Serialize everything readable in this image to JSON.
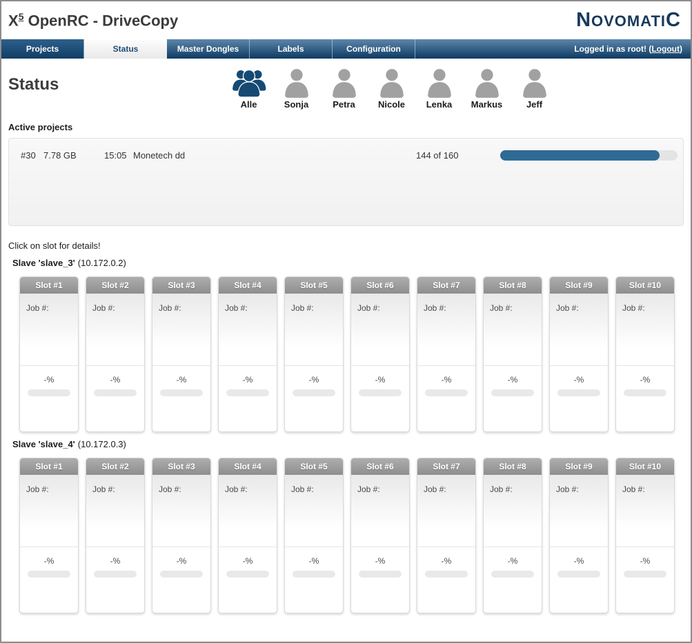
{
  "header": {
    "title_main": "X",
    "title_sup": "5",
    "title_rest": " OpenRC - DriveCopy",
    "logo_first": "N",
    "logo_mid": "OVOMATI",
    "logo_last": "C"
  },
  "nav": {
    "tabs": [
      {
        "label": "Projects",
        "style": "dark"
      },
      {
        "label": "Status",
        "style": "active"
      },
      {
        "label": "Master Dongles",
        "style": "blue"
      },
      {
        "label": "Labels",
        "style": "blue"
      },
      {
        "label": "Configuration",
        "style": "blue"
      }
    ],
    "logged_in_text": "Logged in as root!",
    "paren_open": "(",
    "logout_label": "Logout",
    "paren_close": ")"
  },
  "page": {
    "heading": "Status"
  },
  "users": [
    {
      "name": "Alle",
      "icon": "users-group"
    },
    {
      "name": "Sonja",
      "icon": "user"
    },
    {
      "name": "Petra",
      "icon": "user"
    },
    {
      "name": "Nicole",
      "icon": "user"
    },
    {
      "name": "Lenka",
      "icon": "user"
    },
    {
      "name": "Markus",
      "icon": "user"
    },
    {
      "name": "Jeff",
      "icon": "user"
    }
  ],
  "active_projects": {
    "title": "Active projects",
    "rows": [
      {
        "id": "#30",
        "size": "7.78 GB",
        "time": "15:05",
        "name": "Monetech dd",
        "progress_text": "144 of 160",
        "progress_percent": 90
      }
    ]
  },
  "hint": "Click on slot for details!",
  "slaves": [
    {
      "name": "Slave 'slave_3'",
      "ip": "(10.172.0.2)",
      "slots": [
        {
          "label": "Slot #1",
          "job": "Job #:",
          "percent": "-%"
        },
        {
          "label": "Slot #2",
          "job": "Job #:",
          "percent": "-%"
        },
        {
          "label": "Slot #3",
          "job": "Job #:",
          "percent": "-%"
        },
        {
          "label": "Slot #4",
          "job": "Job #:",
          "percent": "-%"
        },
        {
          "label": "Slot #5",
          "job": "Job #:",
          "percent": "-%"
        },
        {
          "label": "Slot #6",
          "job": "Job #:",
          "percent": "-%"
        },
        {
          "label": "Slot #7",
          "job": "Job #:",
          "percent": "-%"
        },
        {
          "label": "Slot #8",
          "job": "Job #:",
          "percent": "-%"
        },
        {
          "label": "Slot #9",
          "job": "Job #:",
          "percent": "-%"
        },
        {
          "label": "Slot #10",
          "job": "Job #:",
          "percent": "-%"
        }
      ]
    },
    {
      "name": "Slave 'slave_4'",
      "ip": "(10.172.0.3)",
      "slots": [
        {
          "label": "Slot #1",
          "job": "Job #:",
          "percent": "-%"
        },
        {
          "label": "Slot #2",
          "job": "Job #:",
          "percent": "-%"
        },
        {
          "label": "Slot #3",
          "job": "Job #:",
          "percent": "-%"
        },
        {
          "label": "Slot #4",
          "job": "Job #:",
          "percent": "-%"
        },
        {
          "label": "Slot #5",
          "job": "Job #:",
          "percent": "-%"
        },
        {
          "label": "Slot #6",
          "job": "Job #:",
          "percent": "-%"
        },
        {
          "label": "Slot #7",
          "job": "Job #:",
          "percent": "-%"
        },
        {
          "label": "Slot #8",
          "job": "Job #:",
          "percent": "-%"
        },
        {
          "label": "Slot #9",
          "job": "Job #:",
          "percent": "-%"
        },
        {
          "label": "Slot #10",
          "job": "Job #:",
          "percent": "-%"
        }
      ]
    }
  ],
  "colors": {
    "accent_navy": "#16456f",
    "nav_gradient_top": "#5d86ab",
    "nav_gradient_bottom": "#0d3a62",
    "progress_fill": "#2f6a94",
    "user_icon_gray": "#a1a1a1"
  }
}
